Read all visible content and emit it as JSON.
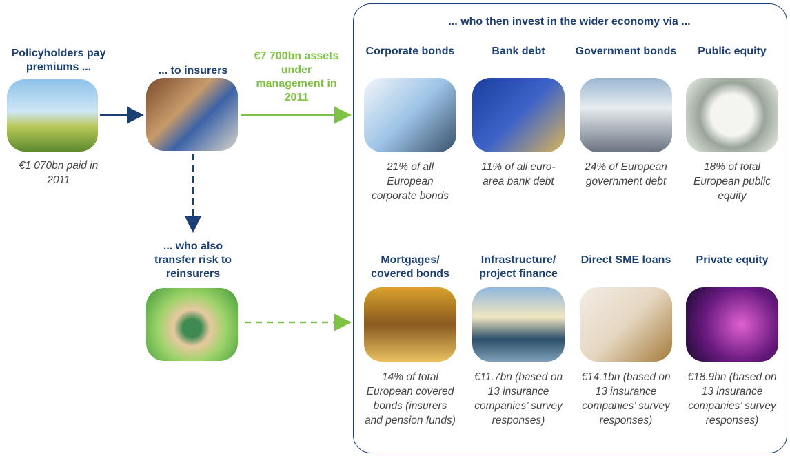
{
  "flow": {
    "policyholders": {
      "label": "Policyholders pay premiums ...",
      "caption": "€1 070bn paid in 2011"
    },
    "insurers": {
      "label": "... to insurers"
    },
    "assets_label": "€7 700bn assets under management in 2011",
    "reinsurers": {
      "label": "... who also transfer risk to reinsurers"
    }
  },
  "panel": {
    "title": "... who then invest in the wider economy via ...",
    "items": [
      {
        "title": "Corporate bonds",
        "caption": "21% of all European corporate bonds"
      },
      {
        "title": "Bank debt",
        "caption": "11% of all euro-area bank debt"
      },
      {
        "title": "Government bonds",
        "caption": "24% of European government debt"
      },
      {
        "title": "Public equity",
        "caption": "18% of total European public equity"
      },
      {
        "title": "Mortgages/ covered bonds",
        "caption": "14% of total European covered bonds (insurers and pension funds)"
      },
      {
        "title": "Infrastructure/ project finance",
        "caption": "€11.7bn (based on 13 insurance companies’ survey responses)"
      },
      {
        "title": "Direct SME loans",
        "caption": "€14.1bn (based on 13 insurance companies’ survey responses)"
      },
      {
        "title": "Private equity",
        "caption": "€18.9bn (based on 13 insurance companies’ survey responses)"
      }
    ]
  }
}
